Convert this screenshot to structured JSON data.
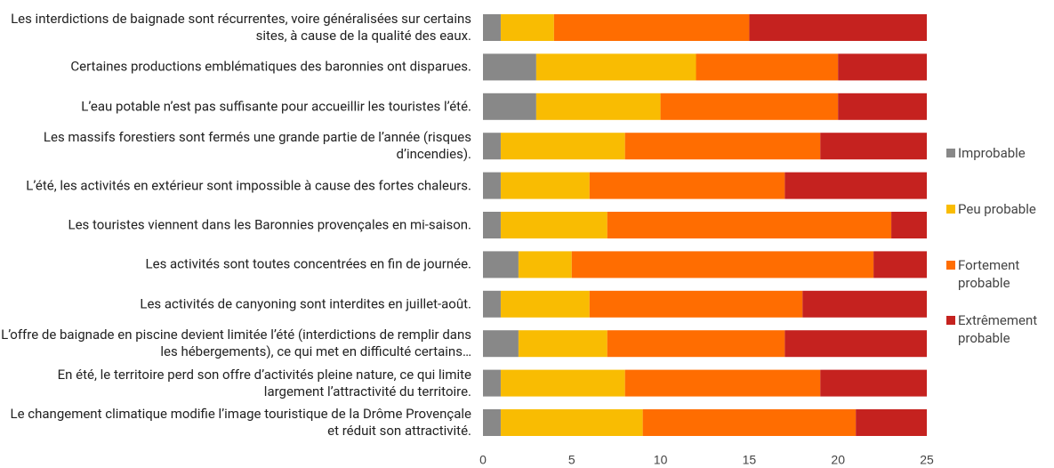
{
  "chart_data": {
    "type": "stacked-bar-horizontal",
    "categories": [
      "Les interdictions de baignade sont récurrentes, voire généralisées sur certains sites, à cause de la qualité des eaux.",
      "Certaines productions emblématiques des baronnies ont disparues.",
      "L’eau potable n’est pas suffisante pour accueillir les touristes l’été.",
      "Les massifs forestiers sont fermés une grande partie de l’année (risques d’incendies).",
      "L’été, les activités en extérieur sont impossible à cause des fortes chaleurs.",
      "Les touristes viennent dans les Baronnies provençales en mi-saison.",
      "Les activités sont toutes concentrées en fin de journée.",
      "Les activités de canyoning sont interdites en juillet-août.",
      "L’offre de baignade en piscine devient limitée l’été (interdictions de remplir dans les hébergements), ce qui met en difficulté certains…",
      "En été, le territoire perd son offre d’activités pleine nature, ce qui limite largement l’attractivité du territoire.",
      "Le changement climatique modifie l’image touristique de la Drôme Provençale et réduit son attractivité."
    ],
    "series": [
      {
        "name": "Improbable",
        "color": "#888888",
        "values": [
          1,
          3,
          3,
          1,
          1,
          1,
          2,
          1,
          2,
          1,
          1
        ]
      },
      {
        "name": "Peu probable",
        "color": "#f9bc02",
        "values": [
          3,
          9,
          7,
          7,
          5,
          6,
          3,
          5,
          5,
          7,
          8
        ]
      },
      {
        "name": "Fortement probable",
        "color": "#ff6d01",
        "values": [
          11,
          8,
          10,
          11,
          11,
          16,
          17,
          12,
          10,
          11,
          12
        ]
      },
      {
        "name": "Extrêmement probable",
        "color": "#c5221f",
        "values": [
          10,
          5,
          5,
          6,
          8,
          2,
          3,
          7,
          8,
          6,
          4
        ]
      }
    ],
    "xlim": [
      0,
      25
    ],
    "xticks": [
      0,
      5,
      10,
      15,
      20,
      25
    ],
    "legend": "right"
  }
}
